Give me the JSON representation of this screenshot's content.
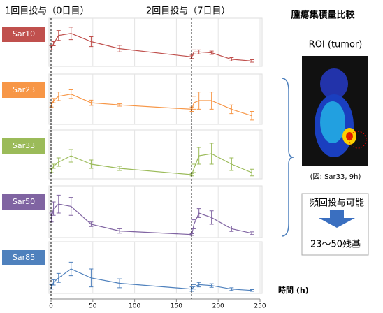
{
  "chart_data": [
    {
      "type": "line",
      "title": "Sar10",
      "color": "#c0504d",
      "x": [
        0.5,
        3,
        9,
        24,
        48,
        82,
        168.5,
        171,
        177,
        192,
        216,
        240
      ],
      "values": [
        4,
        5,
        7,
        7.5,
        5.5,
        3.8,
        1.8,
        3,
        3,
        2.8,
        1.2,
        0.8
      ],
      "errors": [
        0.5,
        0.5,
        1.2,
        1.5,
        1.2,
        0.8,
        0.4,
        0.5,
        0.5,
        0.4,
        0.4,
        0.3
      ],
      "xlim": [
        0,
        250
      ],
      "ylim": [
        0,
        10
      ],
      "xticks": [
        0,
        50,
        100,
        150,
        200,
        250
      ]
    },
    {
      "type": "line",
      "title": "Sar23",
      "color": "#f79646",
      "x": [
        0.5,
        3,
        9,
        24,
        48,
        82,
        168.5,
        171,
        177,
        192,
        216,
        240
      ],
      "values": [
        4,
        5,
        6,
        6.5,
        4.5,
        4,
        3,
        4.5,
        5,
        5,
        3,
        1.5
      ],
      "errors": [
        0.5,
        0.5,
        1,
        1,
        0.6,
        0.3,
        0.5,
        1.5,
        2,
        2,
        1,
        1
      ],
      "xlim": [
        0,
        250
      ],
      "ylim": [
        0,
        10
      ],
      "xticks": [
        0,
        50,
        100,
        150,
        200,
        250
      ]
    },
    {
      "type": "line",
      "title": "Sar33",
      "color": "#9bbb59",
      "x": [
        0.5,
        3,
        9,
        24,
        48,
        82,
        168.5,
        171,
        177,
        192,
        216,
        240
      ],
      "values": [
        1.5,
        2.5,
        3.5,
        5,
        3,
        2,
        0.5,
        2,
        5,
        5.5,
        3,
        1
      ],
      "errors": [
        0.5,
        0.5,
        1,
        1.5,
        1,
        0.5,
        0.3,
        1,
        2,
        2.5,
        1.5,
        0.8
      ],
      "xlim": [
        0,
        250
      ],
      "ylim": [
        0,
        10
      ],
      "xticks": [
        0,
        50,
        100,
        150,
        200,
        250
      ]
    },
    {
      "type": "line",
      "title": "Sar50",
      "color": "#8064a2",
      "x": [
        0.5,
        3,
        9,
        24,
        48,
        82,
        168.5,
        171,
        177,
        192,
        216,
        240
      ],
      "values": [
        4,
        6,
        7,
        6.5,
        2.5,
        1,
        0.2,
        2.5,
        5,
        4,
        1.5,
        0.5
      ],
      "errors": [
        1,
        1.5,
        2,
        2,
        0.5,
        0.5,
        0.2,
        1,
        1,
        1.5,
        0.6,
        0.3
      ],
      "xlim": [
        0,
        250
      ],
      "ylim": [
        0,
        10
      ],
      "xticks": [
        0,
        50,
        100,
        150,
        200,
        250
      ]
    },
    {
      "type": "line",
      "title": "Sar85",
      "color": "#4f81bd",
      "x": [
        0.5,
        3,
        9,
        24,
        48,
        82,
        168.5,
        171,
        177,
        192,
        216,
        240
      ],
      "values": [
        1,
        2,
        3,
        5,
        3,
        1.8,
        0.5,
        1,
        1.5,
        1.3,
        0.5,
        0.2
      ],
      "errors": [
        0.5,
        0.6,
        1,
        1.5,
        2,
        1,
        0.5,
        0.5,
        0.5,
        0.4,
        0.3,
        0.2
      ],
      "xlim": [
        0,
        250
      ],
      "ylim": [
        0,
        10
      ],
      "xticks": [
        0,
        50,
        100,
        150,
        200,
        250
      ],
      "x_label": "時間 (h)"
    }
  ],
  "doses": [
    {
      "label": "1回目投与（0日目）",
      "x": 0
    },
    {
      "label": "2回目投与（7日目）",
      "x": 168
    }
  ],
  "side": {
    "title": "腫瘍集積量比較",
    "roi": "ROI (tumor)",
    "caption": "(図: Sar33, 9h)",
    "box_top": "頻回投与可能",
    "box_bottom": "23～50残基"
  }
}
